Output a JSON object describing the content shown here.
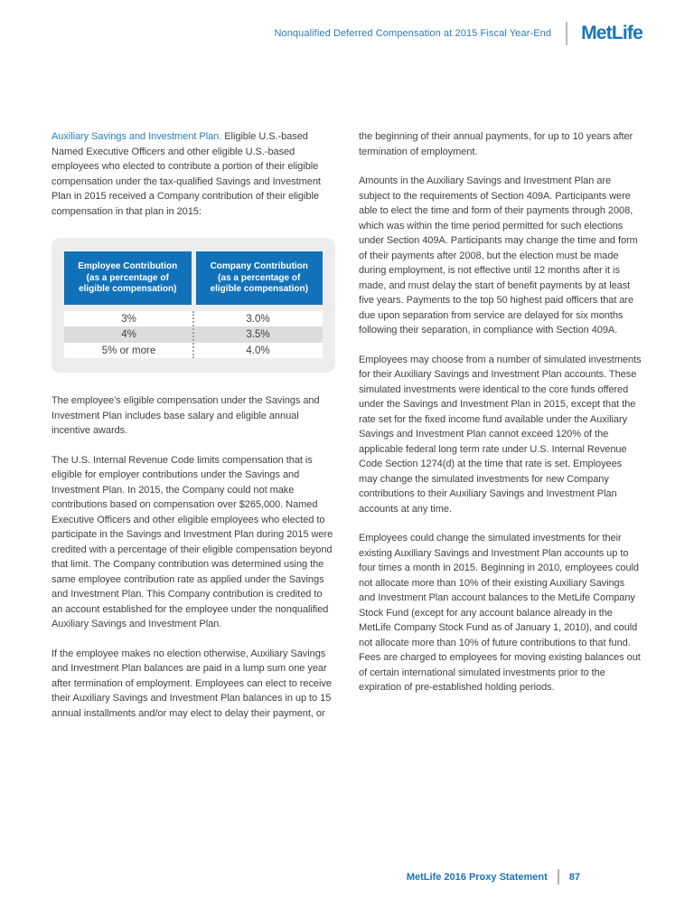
{
  "header": {
    "title": "Nonqualified Deferred Compensation at 2015 Fiscal Year-End",
    "logo": "MetLife"
  },
  "left_column": {
    "p1_lead": "Auxiliary Savings and Investment Plan.",
    "p1": " Eligible U.S.-based Named Executive Officers and other eligible U.S.-based employees who elected to contribute a portion of their eligible compensation under the tax-qualified Savings and Investment Plan in 2015 received a Company contribution of their eligible compensation in that plan in 2015:",
    "p2": "The employee’s eligible compensation under the Savings and Investment Plan includes base salary and eligible annual incentive awards.",
    "p3": "The U.S. Internal Revenue Code limits compensation that is eligible for employer contributions under the Savings and Investment Plan. In 2015, the Company could not make contributions based on compensation over $265,000. Named Executive Officers and other eligible employees who elected to participate in the Savings and Investment Plan during 2015 were credited with a percentage of their eligible compensation beyond that limit. The Company contribution was determined using the same employee contribution rate as applied under the Savings and Investment Plan. This Company contribution is credited to an account established for the employee under the nonqualified Auxiliary Savings and Investment Plan.",
    "p4": "If the employee makes no election otherwise, Auxiliary Savings and Investment Plan balances are paid in a lump sum one year after termination of employment. Employees can elect to receive their Auxiliary Savings and Investment Plan balances in up to 15 annual installments and/or may elect to delay their payment, or"
  },
  "right_column": {
    "p1": "the beginning of their annual payments, for up to 10 years after termination of employment.",
    "p2": "Amounts in the Auxiliary Savings and Investment Plan are subject to the requirements of Section 409A. Participants were able to elect the time and form of their payments through 2008, which was within the time period permitted for such elections under Section 409A. Participants may change the time and form of their payments after 2008, but the election must be made during employment, is not effective until 12 months after it is made, and must delay the start of benefit payments by at least five years. Payments to the top 50 highest paid officers that are due upon separation from service are delayed for six months following their separation, in compliance with Section 409A.",
    "p3": "Employees may choose from a number of simulated investments for their Auxiliary Savings and Investment Plan accounts. These simulated investments were identical to the core funds offered under the Savings and Investment Plan in 2015, except that the rate set for the fixed income fund available under the Auxiliary Savings and Investment Plan cannot exceed 120% of the applicable federal long term rate under U.S. Internal Revenue Code Section 1274(d) at the time that rate is set. Employees may change the simulated investments for new Company contributions to their Auxiliary Savings and Investment Plan accounts at any time.",
    "p4": "Employees could change the simulated investments for their existing Auxiliary Savings and Investment Plan accounts up to four times a month in 2015. Beginning in 2010, employees could not allocate more than 10% of their existing Auxiliary Savings and Investment Plan account balances to the MetLife Company Stock Fund (except for any account balance already in the MetLife Company Stock Fund as of January 1, 2010), and could not allocate more than 10% of future contributions to that fund. Fees are charged to employees for moving existing balances out of certain international simulated investments prior to the expiration of pre-established holding periods."
  },
  "table": {
    "col1_title": "Employee Contribution",
    "col1_sub": "(as a percentage of eligible compensation)",
    "col2_title": "Company Contribution",
    "col2_sub": "(as a percentage of eligible compensation)",
    "rows": [
      {
        "employee": "3%",
        "company": "3.0%"
      },
      {
        "employee": "4%",
        "company": "3.5%"
      },
      {
        "employee": "5% or more",
        "company": "4.0%"
      }
    ]
  },
  "footer": {
    "text": "MetLife 2016 Proxy Statement",
    "page": "87"
  },
  "colors": {
    "metlife_blue": "#1974bb",
    "heading_blue": "#2a7db9",
    "table_header_blue": "#1272b9",
    "body_text": "#414042",
    "table_card_bg": "#ededee",
    "row_stripe": "#dcdcdd"
  }
}
